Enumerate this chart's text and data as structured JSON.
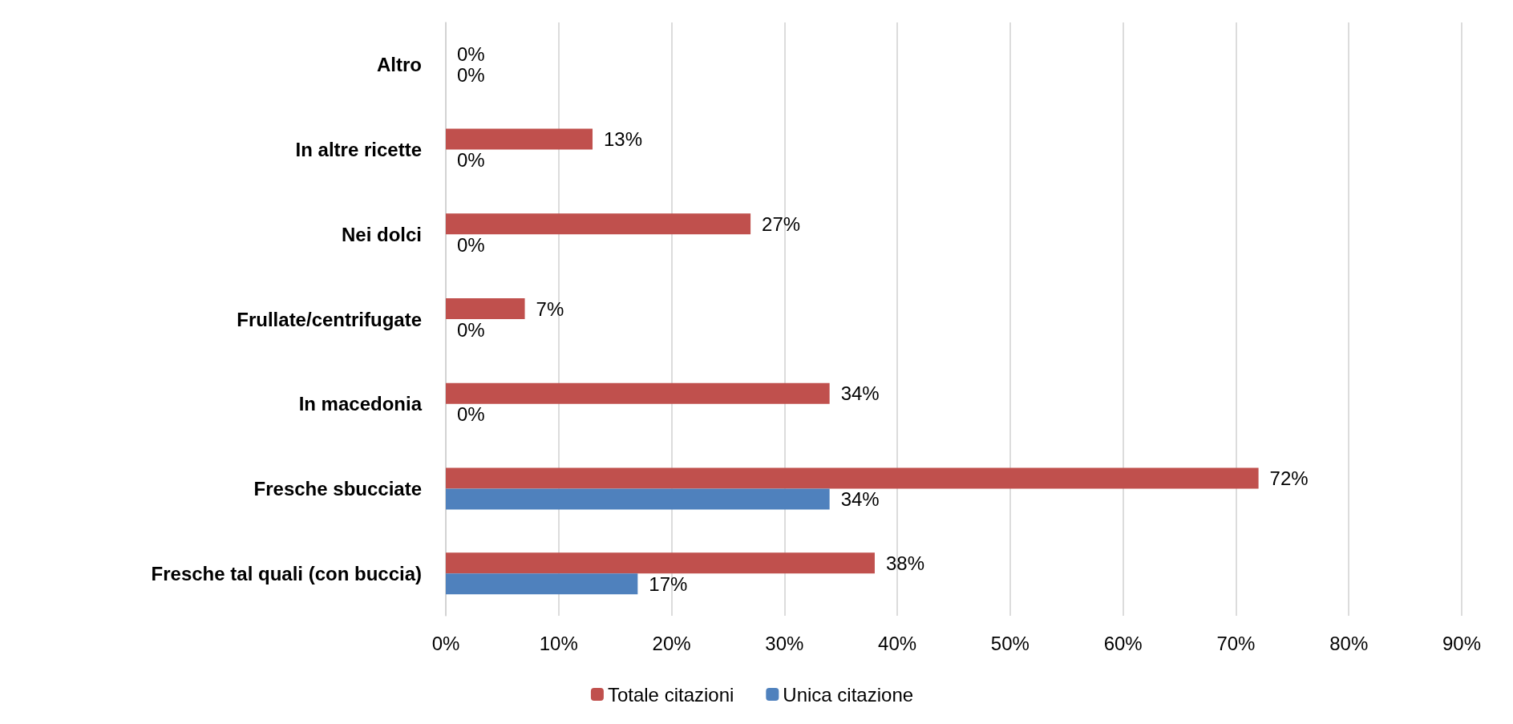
{
  "chart_data": {
    "type": "bar",
    "orientation": "horizontal",
    "categories": [
      "Altro",
      "In altre ricette",
      "Nei dolci",
      "Frullate/centrifugate",
      "In macedonia",
      "Fresche sbucciate",
      "Fresche tal quali (con buccia)"
    ],
    "series": [
      {
        "name": "Totale citazioni",
        "color": "#c0504d",
        "values": [
          0,
          13,
          27,
          7,
          34,
          72,
          38
        ],
        "value_labels": [
          "0%",
          "13%",
          "27%",
          "7%",
          "34%",
          "72%",
          "38%"
        ]
      },
      {
        "name": "Unica citazione",
        "color": "#4f81bd",
        "values": [
          0,
          0,
          0,
          0,
          0,
          34,
          17
        ],
        "value_labels": [
          "0%",
          "0%",
          "0%",
          "0%",
          "0%",
          "34%",
          "17%"
        ]
      }
    ],
    "xlim": [
      0,
      90
    ],
    "xticks": [
      {
        "value": 0,
        "label": "0%"
      },
      {
        "value": 10,
        "label": "10%"
      },
      {
        "value": 20,
        "label": "20%"
      },
      {
        "value": 30,
        "label": "30%"
      },
      {
        "value": 40,
        "label": "40%"
      },
      {
        "value": 50,
        "label": "50%"
      },
      {
        "value": 60,
        "label": "60%"
      },
      {
        "value": 70,
        "label": "70%"
      },
      {
        "value": 80,
        "label": "80%"
      },
      {
        "value": 90,
        "label": "90%"
      }
    ],
    "grid": "x",
    "legend": "bottom"
  }
}
